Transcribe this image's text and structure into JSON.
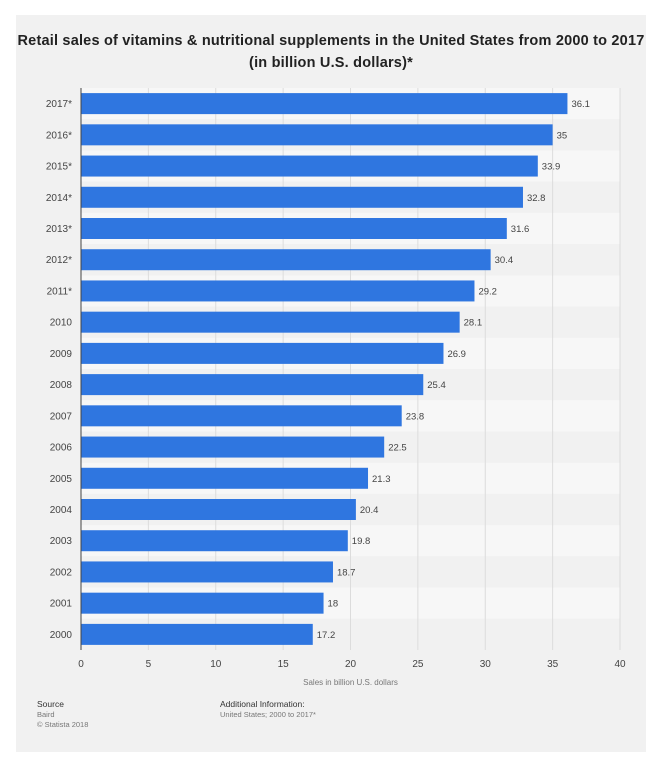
{
  "chart_data": {
    "type": "bar",
    "orientation": "horizontal",
    "title": "Retail sales of vitamins & nutritional supplements in the United States from 2000 to 2017 (in billion U.S. dollars)*",
    "xlabel": "Sales in billion U.S. dollars",
    "ylabel": "",
    "categories": [
      "2017*",
      "2016*",
      "2015*",
      "2014*",
      "2013*",
      "2012*",
      "2011*",
      "2010",
      "2009",
      "2008",
      "2007",
      "2006",
      "2005",
      "2004",
      "2003",
      "2002",
      "2001",
      "2000"
    ],
    "values": [
      36.1,
      35,
      33.9,
      32.8,
      31.6,
      30.4,
      29.2,
      28.1,
      26.9,
      25.4,
      23.8,
      22.5,
      21.3,
      20.4,
      19.8,
      18.7,
      18,
      17.2
    ],
    "value_labels": [
      "36.1",
      "35",
      "33.9",
      "32.8",
      "31.6",
      "30.4",
      "29.2",
      "28.1",
      "26.9",
      "25.4",
      "23.8",
      "22.5",
      "21.3",
      "20.4",
      "19.8",
      "18.7",
      "18",
      "17.2"
    ],
    "xlim": [
      0,
      40
    ],
    "xticks": [
      "0",
      "5",
      "10",
      "15",
      "20",
      "25",
      "30",
      "35",
      "40"
    ],
    "grid": true,
    "bar_color": "#2f76e0"
  },
  "footer": {
    "source_label": "Source",
    "source_name": "Baird",
    "copyright": "© Statista 2018",
    "additional_label": "Additional Information:",
    "additional_text": "United States; 2000 to 2017*"
  }
}
